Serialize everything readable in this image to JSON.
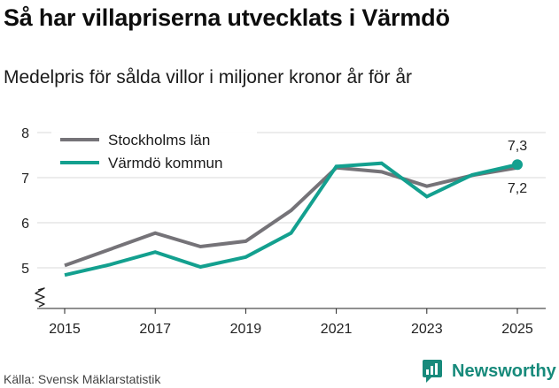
{
  "title": "Så har villapriserna utvecklats i Värmdö",
  "subtitle": "Medelpris för sålda villor i miljoner kronor år för år",
  "source": "Källa: Svensk Mäklarstatistik",
  "brand": "Newsworthy",
  "colors": {
    "stockholm": "#757378",
    "varmdo": "#13a08f",
    "grid": "#d9d9d9",
    "brand": "#178a7b"
  },
  "chart_data": {
    "type": "line",
    "title": "Så har villapriserna utvecklats i Värmdö",
    "xlabel": "",
    "ylabel": "Medelpris för sålda villor i miljoner kronor",
    "x": [
      2015,
      2016,
      2017,
      2018,
      2019,
      2020,
      2021,
      2022,
      2023,
      2024,
      2025
    ],
    "xticks": [
      "2015",
      "2017",
      "2019",
      "2021",
      "2023",
      "2025"
    ],
    "yticks": [
      "5",
      "6",
      "7",
      "8"
    ],
    "ylim": [
      4.5,
      8
    ],
    "axis_break": true,
    "legend_position": "top-left",
    "series": [
      {
        "name": "Stockholms län",
        "values": [
          5.05,
          5.41,
          5.77,
          5.47,
          5.59,
          6.27,
          7.22,
          7.13,
          6.81,
          7.05,
          7.22
        ],
        "end_label": "7,2"
      },
      {
        "name": "Värmdö kommun",
        "values": [
          4.84,
          5.07,
          5.35,
          5.02,
          5.24,
          5.77,
          7.25,
          7.32,
          6.58,
          7.06,
          7.29
        ],
        "end_label": "7,3"
      }
    ]
  }
}
